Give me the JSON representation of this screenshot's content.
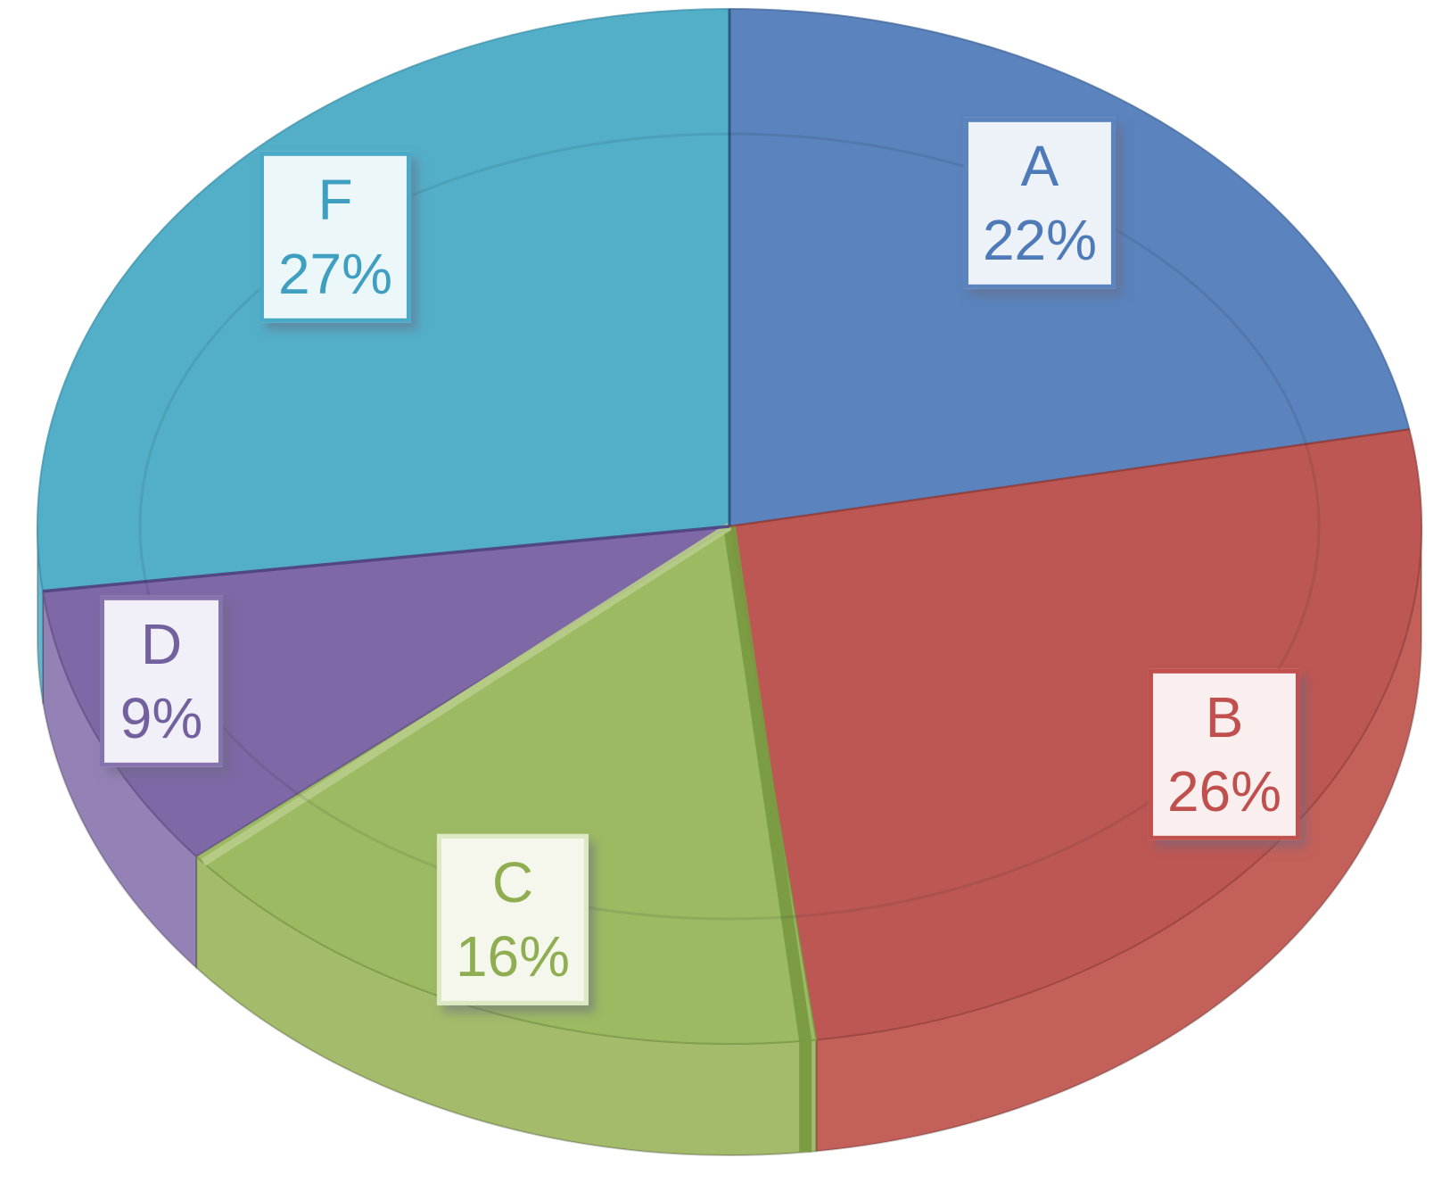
{
  "background_color": "#ffffff",
  "chart_data": {
    "type": "pie",
    "style": "3d",
    "start_angle_deg": 0,
    "direction": "clockwise",
    "data_labels_visible": true,
    "categories": [
      "A",
      "B",
      "C",
      "D",
      "F"
    ],
    "values": [
      22,
      26,
      16,
      9,
      27
    ],
    "value_unit": "%",
    "slices": [
      {
        "label": "A",
        "value": 22,
        "pct": "22%",
        "color": "#5b83bd",
        "edge_color": "#44689c",
        "label_bg": "#edf2f9",
        "label_border": "#5b83bd",
        "label_text": "#4f7ab8"
      },
      {
        "label": "B",
        "value": 26,
        "pct": "26%",
        "color": "#bd5753",
        "side_color": "#c4605a",
        "edge_color": "#9a4441",
        "label_bg": "#f9efee",
        "label_border": "#c0504d",
        "label_text": "#c0504d"
      },
      {
        "label": "C",
        "value": 16,
        "pct": "16%",
        "color": "#9cba62",
        "side_color": "#a3bb6a",
        "edge_color": "#7e9c49",
        "label_bg": "#f5f7ec",
        "label_border": "#dde9c2",
        "label_text": "#8fae52"
      },
      {
        "label": "D",
        "value": 9,
        "pct": "9%",
        "color": "#7e68a5",
        "side_color": "#9482b7",
        "edge_color": "#655388",
        "label_bg": "#f1eff7",
        "label_border": "#8672ad",
        "label_text": "#73619f"
      },
      {
        "label": "F",
        "value": 27,
        "pct": "27%",
        "color": "#53afc8",
        "side_color": "#65b7cd",
        "edge_color": "#3d92ab",
        "label_bg": "#ecf7fa",
        "label_border": "#4aa9c6",
        "label_text": "#3f9fc0"
      }
    ]
  }
}
